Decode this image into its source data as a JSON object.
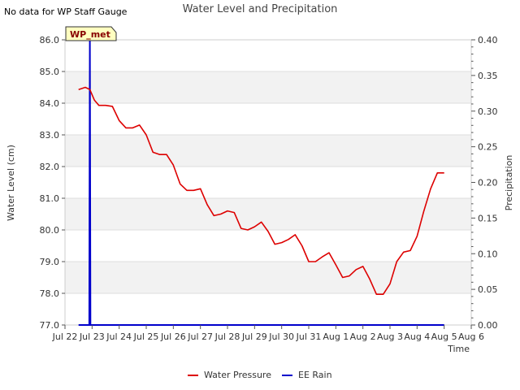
{
  "chart_data": {
    "type": "line",
    "title": "Water Level and Precipitation",
    "note": "No data for WP Staff Gauge",
    "site_label": "WP_met",
    "xlabel": "Time",
    "ylabel_left": "Water Level (cm)",
    "ylabel_right": "Precipitation",
    "ylim_left": [
      77.0,
      86.0
    ],
    "ylim_right": [
      0.0,
      0.4
    ],
    "x_start": "Jul 22",
    "x_end": "Aug 6",
    "x_ticks": [
      "Jul 22",
      "Jul 23",
      "Jul 24",
      "Jul 25",
      "Jul 26",
      "Jul 27",
      "Jul 28",
      "Jul 29",
      "Jul 30",
      "Jul 31",
      "Aug 1",
      "Aug 2",
      "Aug 3",
      "Aug 4",
      "Aug 5",
      "Aug 6"
    ],
    "y_ticks_left": [
      "77.0",
      "78.0",
      "79.0",
      "80.0",
      "81.0",
      "82.0",
      "83.0",
      "84.0",
      "85.0",
      "86.0"
    ],
    "y_ticks_right": [
      "0.00",
      "0.05",
      "0.10",
      "0.15",
      "0.20",
      "0.25",
      "0.30",
      "0.35",
      "0.40"
    ],
    "grid": true,
    "legend_position": "bottom-center",
    "legend": [
      "Water Pressure",
      "EE Rain"
    ],
    "series": [
      {
        "name": "Water Pressure",
        "axis": "left",
        "color": "#dd0000",
        "x": [
          "Jul 22 12:00",
          "Jul 22 18:00",
          "Jul 22 22:00",
          "Jul 23 02:00",
          "Jul 23 06:00",
          "Jul 23 12:00",
          "Jul 23 18:00",
          "Jul 24 00:00",
          "Jul 24 06:00",
          "Jul 24 12:00",
          "Jul 24 18:00",
          "Jul 25 00:00",
          "Jul 25 06:00",
          "Jul 25 12:00",
          "Jul 25 18:00",
          "Jul 26 00:00",
          "Jul 26 06:00",
          "Jul 26 12:00",
          "Jul 26 18:00",
          "Jul 27 00:00",
          "Jul 27 06:00",
          "Jul 27 12:00",
          "Jul 27 18:00",
          "Jul 28 00:00",
          "Jul 28 06:00",
          "Jul 28 12:00",
          "Jul 28 18:00",
          "Jul 29 00:00",
          "Jul 29 06:00",
          "Jul 29 12:00",
          "Jul 29 18:00",
          "Jul 30 00:00",
          "Jul 30 06:00",
          "Jul 30 12:00",
          "Jul 30 18:00",
          "Jul 31 00:00",
          "Jul 31 06:00",
          "Jul 31 12:00",
          "Jul 31 18:00",
          "Aug 1 00:00",
          "Aug 1 06:00",
          "Aug 1 12:00",
          "Aug 1 18:00",
          "Aug 2 00:00",
          "Aug 2 06:00",
          "Aug 2 12:00",
          "Aug 2 18:00",
          "Aug 3 00:00",
          "Aug 3 06:00",
          "Aug 3 12:00",
          "Aug 3 18:00",
          "Aug 4 00:00",
          "Aug 4 06:00",
          "Aug 4 12:00",
          "Aug 4 18:00",
          "Aug 5 00:00"
        ],
        "y": [
          84.43,
          84.5,
          84.43,
          84.1,
          83.93,
          83.93,
          83.9,
          83.45,
          83.22,
          83.22,
          83.31,
          83.0,
          82.45,
          82.38,
          82.38,
          82.05,
          81.45,
          81.25,
          81.25,
          81.3,
          80.8,
          80.45,
          80.5,
          80.6,
          80.55,
          80.05,
          80.0,
          80.1,
          80.25,
          79.95,
          79.55,
          79.6,
          79.7,
          79.85,
          79.5,
          79.0,
          79.0,
          79.15,
          79.28,
          78.9,
          78.5,
          78.55,
          78.75,
          78.85,
          78.45,
          77.97,
          77.97,
          78.3,
          79.0,
          79.3,
          79.35,
          79.8,
          80.6,
          81.3,
          81.8,
          81.8
        ]
      },
      {
        "name": "EE Rain",
        "axis": "right",
        "color": "#0000cc",
        "x": [
          "Jul 22 12:00",
          "Jul 22 21:30",
          "Jul 22 22:00",
          "Jul 22 22:30",
          "Aug 5 00:00"
        ],
        "y": [
          0.0,
          0.0,
          0.4,
          0.0,
          0.0
        ]
      }
    ]
  }
}
